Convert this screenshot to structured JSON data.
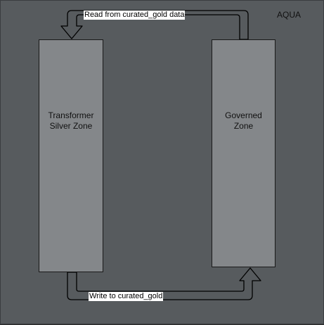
{
  "title": "AQUA",
  "zones": {
    "transformer": "Transformer\nSilver Zone",
    "governed": "Governed\nZone"
  },
  "arrows": {
    "read": "Read from curated_gold data",
    "write": "Write to curated_gold"
  },
  "colors": {
    "background": "#575b5e",
    "zone_fill": "#84878a",
    "arrow_fill": "#575b5e",
    "stroke": "#000000",
    "label_bg": "#ffffff"
  }
}
